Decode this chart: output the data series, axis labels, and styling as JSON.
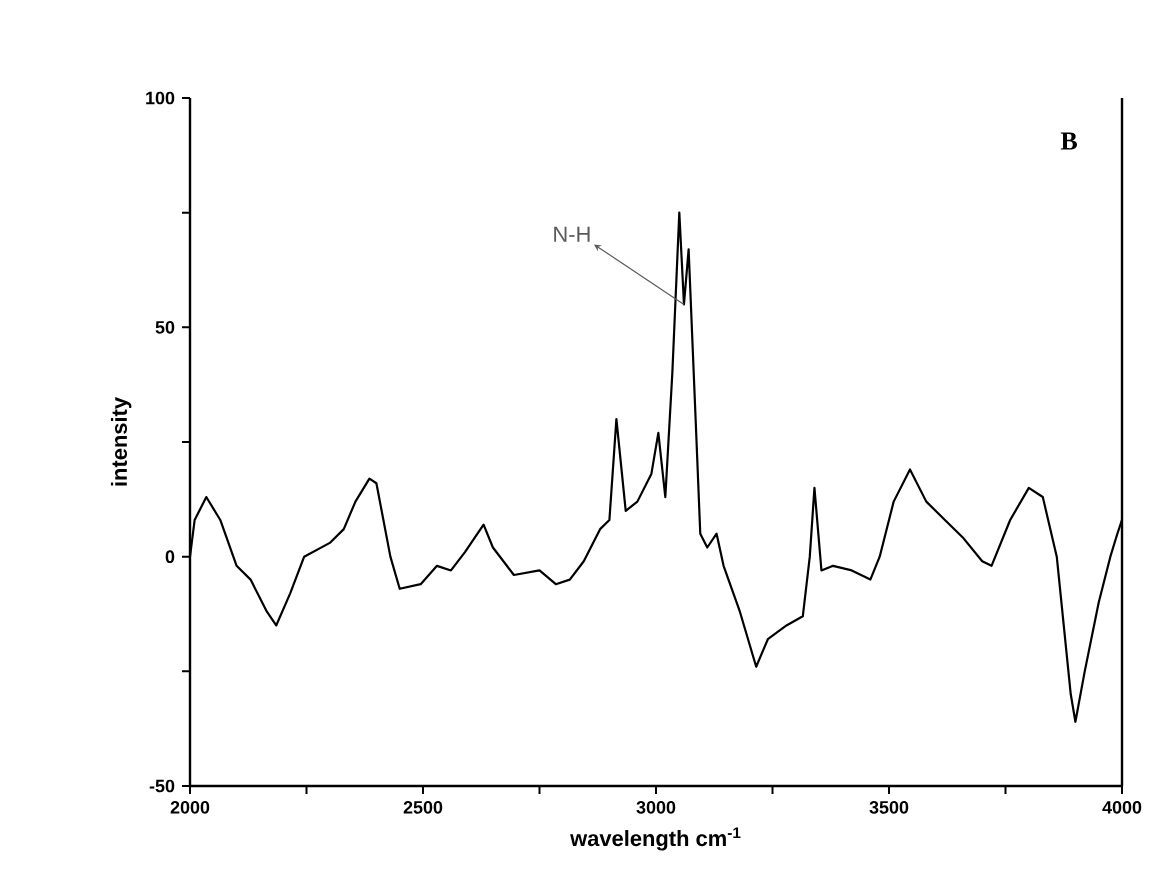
{
  "chart_data": {
    "type": "line",
    "xlabel": "wavelength cm$^{-1}$",
    "ylabel": "intensity",
    "xlim": [
      2000,
      4000
    ],
    "ylim": [
      -50,
      100
    ],
    "xticks": [
      2000,
      {
        "value": 2250,
        "label": null
      },
      2500,
      {
        "value": 2750,
        "label": null
      },
      3000,
      {
        "value": 3250,
        "label": null
      },
      3500,
      {
        "value": 3750,
        "label": null
      },
      4000
    ],
    "yticks": [
      -50,
      {
        "value": -25,
        "label": null
      },
      0,
      {
        "value": 25,
        "label": null
      },
      50,
      {
        "value": 75,
        "label": null
      },
      100
    ],
    "grid": false,
    "legend": false,
    "marker": "none",
    "line_style": "solid",
    "annotations": [
      {
        "text": "N-H",
        "x": 3060,
        "y": 55
      },
      "B"
    ],
    "series": [
      {
        "color": "#000000",
        "x": [
          2000,
          2010,
          2035,
          2065,
          2100,
          2130,
          2165,
          2185,
          2215,
          2245,
          2300,
          2330,
          2355,
          2385,
          2400,
          2430,
          2450,
          2495,
          2530,
          2560,
          2590,
          2630,
          2650,
          2695,
          2750,
          2785,
          2815,
          2845,
          2880,
          2900,
          2915,
          2935,
          2960,
          2990,
          3005,
          3020,
          3035,
          3050,
          3060,
          3070,
          3085,
          3095,
          3110,
          3130,
          3145,
          3180,
          3215,
          3240,
          3280,
          3315,
          3330,
          3340,
          3355,
          3380,
          3420,
          3460,
          3480,
          3510,
          3545,
          3580,
          3620,
          3660,
          3700,
          3720,
          3760,
          3800,
          3830,
          3860,
          3890,
          3900,
          3920,
          3950,
          3975,
          3990,
          4000
        ],
        "values": [
          0,
          8,
          13,
          8,
          -2,
          -5,
          -12,
          -15,
          -8,
          0,
          3,
          6,
          12,
          17,
          16,
          0,
          -7,
          -6,
          -2,
          -3,
          1,
          7,
          2,
          -4,
          -3,
          -6,
          -5,
          -1,
          6,
          8,
          30,
          10,
          12,
          18,
          27,
          13,
          40,
          75,
          55,
          67,
          30,
          5,
          2,
          5,
          -2,
          -12,
          -24,
          -18,
          -15,
          -13,
          0,
          15,
          -3,
          -2,
          -3,
          -5,
          0,
          12,
          19,
          12,
          8,
          4,
          -1,
          -2,
          8,
          15,
          13,
          0,
          -30,
          -36,
          -25,
          -10,
          0,
          5,
          8
        ]
      }
    ]
  }
}
